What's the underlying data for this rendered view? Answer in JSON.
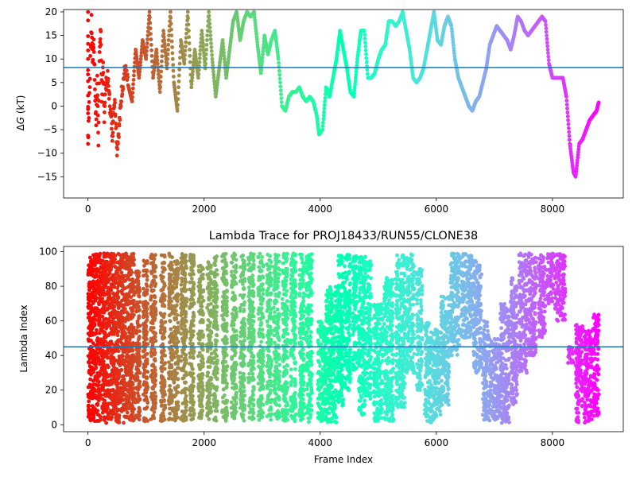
{
  "chart_data": [
    {
      "type": "scatter",
      "title": "",
      "xlabel": "",
      "ylabel_prefix": "Δ",
      "ylabel_var": "G",
      "ylabel_suffix": " (kT)",
      "xlim": [
        -420,
        9220
      ],
      "ylim": [
        -19.5,
        20.5
      ],
      "xticks": [
        0,
        2000,
        4000,
        6000,
        8000
      ],
      "yticks": [
        -15,
        -10,
        -5,
        0,
        5,
        10,
        15,
        20
      ],
      "hline": 8.2,
      "colormap": "rainbow (red at frame 0 → violet at last frame)",
      "series": [
        {
          "name": "",
          "points": [
            [
              0,
              20
            ],
            [
              0,
              16
            ],
            [
              0,
              12
            ],
            [
              0,
              8
            ],
            [
              0,
              5
            ],
            [
              0,
              0
            ],
            [
              0,
              -2
            ],
            [
              0,
              -8
            ],
            [
              60,
              18
            ],
            [
              80,
              10
            ],
            [
              100,
              14
            ],
            [
              120,
              4
            ],
            [
              140,
              -4
            ],
            [
              160,
              6
            ],
            [
              180,
              -7
            ],
            [
              200,
              12
            ],
            [
              220,
              16
            ],
            [
              240,
              2
            ],
            [
              260,
              8
            ],
            [
              280,
              -2
            ],
            [
              300,
              4
            ],
            [
              340,
              6
            ],
            [
              380,
              0
            ],
            [
              420,
              -6
            ],
            [
              460,
              2
            ],
            [
              500,
              -9
            ],
            [
              540,
              -4
            ],
            [
              580,
              3
            ],
            [
              640,
              8
            ],
            [
              700,
              4
            ],
            [
              760,
              1
            ],
            [
              820,
              12
            ],
            [
              880,
              6
            ],
            [
              940,
              14
            ],
            [
              1000,
              10
            ],
            [
              1060,
              20
            ],
            [
              1120,
              6
            ],
            [
              1180,
              12
            ],
            [
              1240,
              3
            ],
            [
              1300,
              16
            ],
            [
              1360,
              8
            ],
            [
              1420,
              20
            ],
            [
              1480,
              5
            ],
            [
              1540,
              -1
            ],
            [
              1600,
              14
            ],
            [
              1660,
              9
            ],
            [
              1720,
              20
            ],
            [
              1780,
              4
            ],
            [
              1840,
              12
            ],
            [
              1900,
              6
            ],
            [
              1960,
              16
            ],
            [
              2020,
              8
            ],
            [
              2080,
              20
            ],
            [
              2140,
              10
            ],
            [
              2200,
              2
            ],
            [
              2260,
              8
            ],
            [
              2320,
              14
            ],
            [
              2380,
              6
            ],
            [
              2440,
              12
            ],
            [
              2500,
              18
            ],
            [
              2560,
              20
            ],
            [
              2620,
              14
            ],
            [
              2680,
              18
            ],
            [
              2740,
              20
            ],
            [
              2800,
              19
            ],
            [
              2860,
              20
            ],
            [
              2920,
              13
            ],
            [
              2980,
              7
            ],
            [
              3040,
              15
            ],
            [
              3100,
              11
            ],
            [
              3160,
              14
            ],
            [
              3220,
              16
            ],
            [
              3280,
              10
            ],
            [
              3340,
              0
            ],
            [
              3400,
              -1
            ],
            [
              3460,
              2
            ],
            [
              3520,
              3
            ],
            [
              3580,
              3
            ],
            [
              3640,
              4
            ],
            [
              3700,
              2
            ],
            [
              3760,
              1
            ],
            [
              3820,
              2
            ],
            [
              3880,
              1
            ],
            [
              3940,
              -2
            ],
            [
              3980,
              -6
            ],
            [
              4040,
              -5
            ],
            [
              4100,
              4
            ],
            [
              4160,
              2
            ],
            [
              4220,
              6
            ],
            [
              4280,
              10
            ],
            [
              4340,
              16
            ],
            [
              4400,
              12
            ],
            [
              4460,
              8
            ],
            [
              4520,
              3
            ],
            [
              4580,
              2
            ],
            [
              4640,
              10
            ],
            [
              4700,
              16
            ],
            [
              4760,
              16
            ],
            [
              4820,
              6
            ],
            [
              4880,
              6
            ],
            [
              4940,
              7
            ],
            [
              5000,
              10
            ],
            [
              5060,
              12
            ],
            [
              5120,
              13
            ],
            [
              5180,
              18
            ],
            [
              5240,
              18
            ],
            [
              5300,
              17
            ],
            [
              5360,
              18
            ],
            [
              5420,
              20
            ],
            [
              5480,
              16
            ],
            [
              5540,
              12
            ],
            [
              5600,
              6
            ],
            [
              5660,
              5
            ],
            [
              5720,
              6
            ],
            [
              5780,
              8
            ],
            [
              5840,
              12
            ],
            [
              5900,
              16
            ],
            [
              5960,
              20
            ],
            [
              6020,
              14
            ],
            [
              6080,
              13
            ],
            [
              6140,
              17
            ],
            [
              6200,
              19
            ],
            [
              6260,
              17
            ],
            [
              6320,
              10
            ],
            [
              6380,
              6
            ],
            [
              6440,
              4
            ],
            [
              6500,
              2
            ],
            [
              6560,
              0
            ],
            [
              6620,
              -1
            ],
            [
              6680,
              1
            ],
            [
              6740,
              2
            ],
            [
              6800,
              5
            ],
            [
              6860,
              8
            ],
            [
              6920,
              13
            ],
            [
              6980,
              15
            ],
            [
              7040,
              17
            ],
            [
              7100,
              16
            ],
            [
              7160,
              15
            ],
            [
              7220,
              14
            ],
            [
              7280,
              12
            ],
            [
              7340,
              15
            ],
            [
              7400,
              19
            ],
            [
              7460,
              18
            ],
            [
              7520,
              16
            ],
            [
              7580,
              15
            ],
            [
              7640,
              16
            ],
            [
              7700,
              17
            ],
            [
              7760,
              18
            ],
            [
              7820,
              19
            ],
            [
              7880,
              18
            ],
            [
              7940,
              9
            ],
            [
              8000,
              6
            ],
            [
              8060,
              6
            ],
            [
              8120,
              6
            ],
            [
              8180,
              6
            ],
            [
              8240,
              2
            ],
            [
              8300,
              -8
            ],
            [
              8360,
              -14
            ],
            [
              8400,
              -15
            ],
            [
              8460,
              -8
            ],
            [
              8520,
              -7
            ],
            [
              8580,
              -5
            ],
            [
              8640,
              -3
            ],
            [
              8700,
              -2
            ],
            [
              8760,
              -1
            ],
            [
              8800,
              1
            ]
          ]
        }
      ]
    },
    {
      "type": "scatter",
      "title": "Lambda Trace for PROJ18433/RUN55/CLONE38",
      "xlabel": "Frame Index",
      "ylabel": "Lambda Index",
      "xlim": [
        -420,
        9220
      ],
      "ylim": [
        -4,
        103
      ],
      "xticks": [
        0,
        2000,
        4000,
        6000,
        8000
      ],
      "yticks": [
        0,
        20,
        40,
        60,
        80,
        100
      ],
      "hline": 45,
      "colormap": "rainbow (red at frame 0 → violet at last frame)",
      "bands": [
        [
          0,
          60,
          2,
          99
        ],
        [
          60,
          200,
          2,
          99
        ],
        [
          200,
          330,
          1,
          99
        ],
        [
          330,
          480,
          2,
          99
        ],
        [
          480,
          640,
          1,
          99
        ],
        [
          640,
          800,
          2,
          99
        ],
        [
          820,
          900,
          2,
          90
        ],
        [
          950,
          1030,
          2,
          95
        ],
        [
          1080,
          1170,
          2,
          99
        ],
        [
          1250,
          1330,
          2,
          98
        ],
        [
          1390,
          1460,
          2,
          99
        ],
        [
          1480,
          1560,
          2,
          95
        ],
        [
          1600,
          1700,
          2,
          99
        ],
        [
          1750,
          1830,
          2,
          99
        ],
        [
          1900,
          1990,
          2,
          92
        ],
        [
          2050,
          2130,
          2,
          95
        ],
        [
          2160,
          2230,
          2,
          99
        ],
        [
          2310,
          2400,
          2,
          99
        ],
        [
          2470,
          2560,
          2,
          99
        ],
        [
          2620,
          2700,
          2,
          99
        ],
        [
          2760,
          2860,
          2,
          99
        ],
        [
          2930,
          3020,
          2,
          99
        ],
        [
          3080,
          3160,
          2,
          99
        ],
        [
          3200,
          3300,
          2,
          99
        ],
        [
          3350,
          3440,
          2,
          99
        ],
        [
          3490,
          3580,
          2,
          99
        ],
        [
          3640,
          3720,
          2,
          99
        ],
        [
          3760,
          3860,
          1,
          99
        ],
        [
          3960,
          4100,
          2,
          60
        ],
        [
          4100,
          4280,
          1,
          80
        ],
        [
          4300,
          4400,
          10,
          99
        ],
        [
          4420,
          4520,
          20,
          99
        ],
        [
          4560,
          4640,
          30,
          99
        ],
        [
          4660,
          4780,
          5,
          99
        ],
        [
          4800,
          4880,
          15,
          95
        ],
        [
          4920,
          5080,
          2,
          70
        ],
        [
          5100,
          5260,
          2,
          85
        ],
        [
          5300,
          5460,
          10,
          99
        ],
        [
          5480,
          5620,
          30,
          99
        ],
        [
          5660,
          5760,
          20,
          90
        ],
        [
          5800,
          5880,
          2,
          60
        ],
        [
          5880,
          6080,
          1,
          55
        ],
        [
          6080,
          6220,
          10,
          75
        ],
        [
          6240,
          6400,
          40,
          99
        ],
        [
          6420,
          6620,
          50,
          99
        ],
        [
          6640,
          6780,
          30,
          95
        ],
        [
          6800,
          6900,
          2,
          60
        ],
        [
          6900,
          7100,
          2,
          50
        ],
        [
          7100,
          7260,
          1,
          70
        ],
        [
          7280,
          7400,
          10,
          85
        ],
        [
          7420,
          7560,
          30,
          99
        ],
        [
          7580,
          7720,
          40,
          99
        ],
        [
          7760,
          7880,
          50,
          99
        ],
        [
          7900,
          8020,
          70,
          99
        ],
        [
          8040,
          8220,
          60,
          99
        ],
        [
          8260,
          8360,
          35,
          45
        ],
        [
          8400,
          8520,
          1,
          60
        ],
        [
          8540,
          8680,
          1,
          55
        ],
        [
          8700,
          8800,
          5,
          65
        ]
      ]
    }
  ]
}
